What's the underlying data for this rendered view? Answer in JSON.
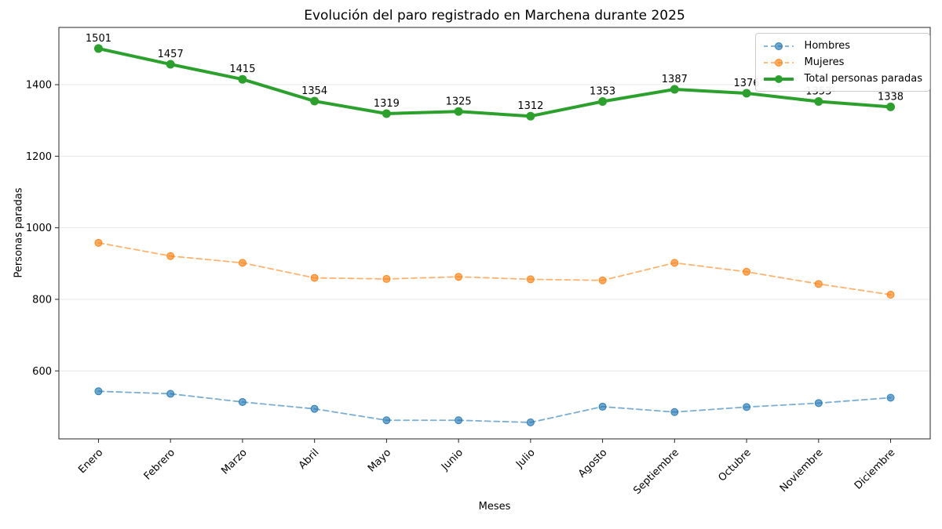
{
  "chart_data": {
    "type": "line",
    "title": "Evolución del paro registrado en Marchena durante 2025",
    "xlabel": "Meses",
    "ylabel": "Personas paradas",
    "categories": [
      "Enero",
      "Febrero",
      "Marzo",
      "Abril",
      "Mayo",
      "Junio",
      "Julio",
      "Agosto",
      "Septiembre",
      "Octubre",
      "Noviembre",
      "Diciembre"
    ],
    "series": [
      {
        "name": "Hombres",
        "values": [
          543,
          536,
          513,
          494,
          462,
          462,
          456,
          500,
          485,
          499,
          510,
          525
        ],
        "color": "#1f77b4",
        "alpha": 0.6,
        "line_style": "dashed",
        "line_width": 1.8,
        "marker": "circle",
        "data_labels": false
      },
      {
        "name": "Mujeres",
        "values": [
          958,
          921,
          902,
          860,
          857,
          863,
          856,
          853,
          902,
          877,
          843,
          813
        ],
        "color": "#ff7f0e",
        "alpha": 0.6,
        "line_style": "dashed",
        "line_width": 1.8,
        "marker": "circle",
        "data_labels": false
      },
      {
        "name": "Total personas paradas",
        "values": [
          1501,
          1457,
          1415,
          1354,
          1319,
          1325,
          1312,
          1353,
          1387,
          1376,
          1353,
          1338
        ],
        "color": "#2ca02c",
        "alpha": 1.0,
        "line_style": "solid",
        "line_width": 4,
        "marker": "circle",
        "data_labels": true
      }
    ],
    "yticks": [
      600,
      800,
      1000,
      1200,
      1400
    ],
    "ylim": [
      410,
      1560
    ],
    "grid": "horizontal",
    "grid_color": "#e7e7e7",
    "spine_color": "#262626",
    "legend_position": "top-right",
    "x_tick_rotation": 45
  }
}
